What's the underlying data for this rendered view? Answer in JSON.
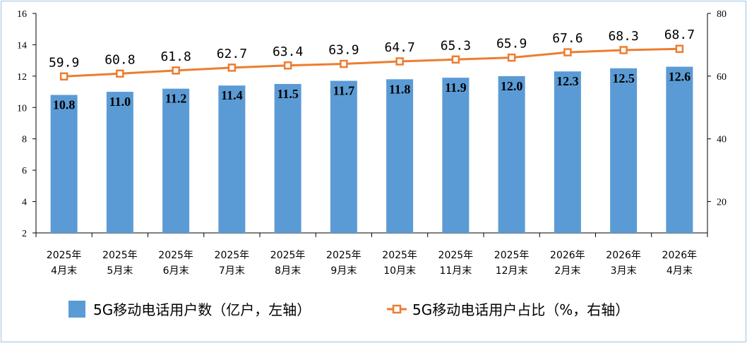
{
  "chart_data": {
    "type": "bar+line",
    "categories": [
      [
        "2025年",
        "4月末"
      ],
      [
        "2025年",
        "5月末"
      ],
      [
        "2025年",
        "6月末"
      ],
      [
        "2025年",
        "7月末"
      ],
      [
        "2025年",
        "8月末"
      ],
      [
        "2025年",
        "9月末"
      ],
      [
        "2025年",
        "10月末"
      ],
      [
        "2025年",
        "11月末"
      ],
      [
        "2025年",
        "12月末"
      ],
      [
        "2026年",
        "2月末"
      ],
      [
        "2026年",
        "3月末"
      ],
      [
        "2026年",
        "4月末"
      ]
    ],
    "series": [
      {
        "name": "5G移动电话用户数（亿户，左轴）",
        "type": "bar",
        "axis": "left",
        "color": "#5b9bd5",
        "values": [
          10.8,
          11.0,
          11.2,
          11.4,
          11.5,
          11.7,
          11.8,
          11.9,
          12.0,
          12.3,
          12.5,
          12.6
        ],
        "labels": [
          "10.8",
          "11.0",
          "11.2",
          "11.4",
          "11.5",
          "11.7",
          "11.8",
          "11.9",
          "12.0",
          "12.3",
          "12.5",
          "12.6"
        ]
      },
      {
        "name": "5G移动电话用户占比（%，右轴）",
        "type": "line",
        "axis": "right",
        "color": "#ed7d31",
        "values": [
          59.9,
          60.8,
          61.8,
          62.7,
          63.4,
          63.9,
          64.7,
          65.3,
          65.9,
          67.6,
          68.3,
          68.7
        ],
        "labels": [
          "59.9",
          "60.8",
          "61.8",
          "62.7",
          "63.4",
          "63.9",
          "64.7",
          "65.3",
          "65.9",
          "67.6",
          "68.3",
          "68.7"
        ]
      }
    ],
    "left_axis": {
      "min": 2,
      "max": 16,
      "ticks": [
        2,
        4,
        6,
        8,
        10,
        12,
        14,
        16
      ]
    },
    "right_axis": {
      "min": 10,
      "max": 80,
      "ticks": [
        20,
        40,
        60,
        80
      ]
    },
    "grid": false,
    "legend_position": "bottom"
  }
}
